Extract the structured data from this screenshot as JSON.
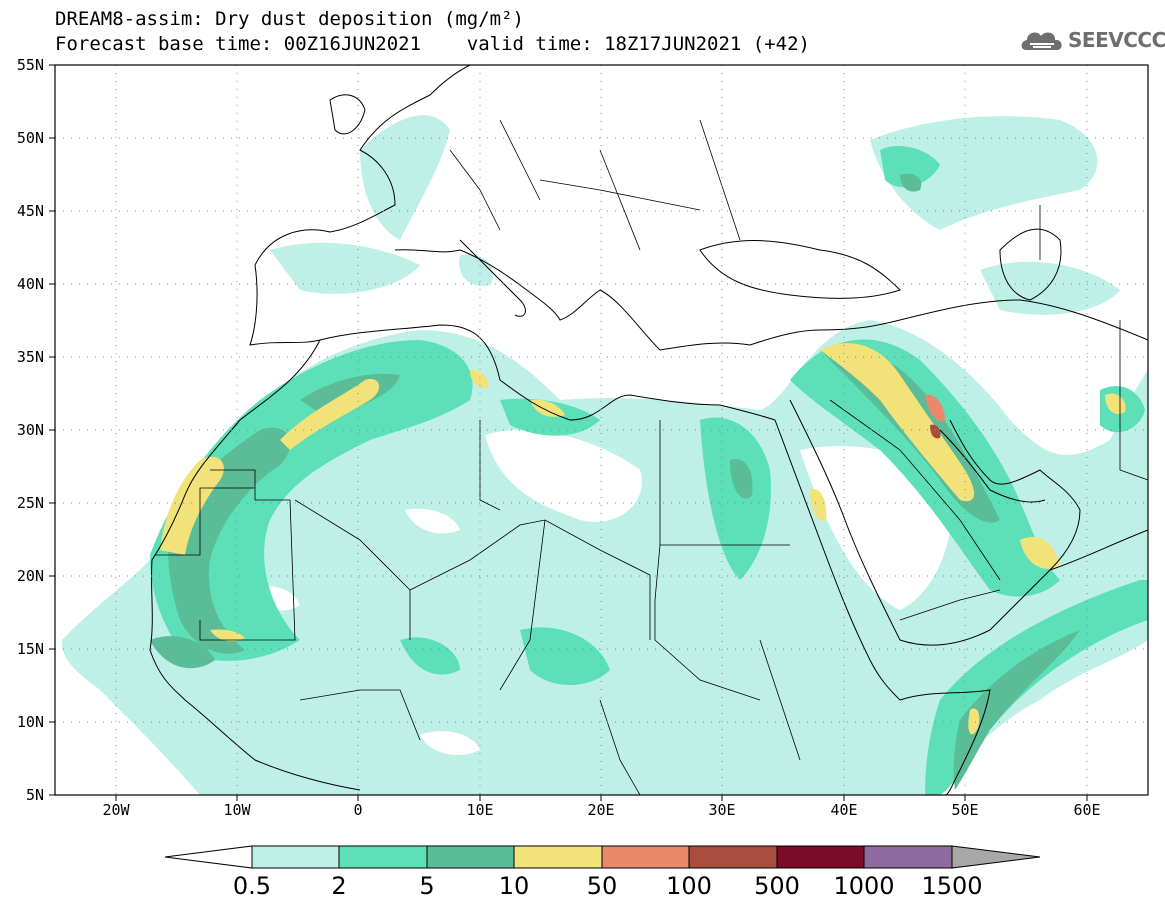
{
  "header": {
    "title_line1": "DREAM8-assim: Dry dust deposition (mg/m²)",
    "title_line2": "Forecast base time: 00Z16JUN2021    valid time: 18Z17JUN2021 (+42)",
    "logo_text": "SEEVCCC"
  },
  "map": {
    "lat_labels": [
      "55N",
      "50N",
      "45N",
      "40N",
      "35N",
      "30N",
      "25N",
      "20N",
      "15N",
      "10N",
      "5N"
    ],
    "lon_labels": [
      "20W",
      "10W",
      "0",
      "10E",
      "20E",
      "30E",
      "40E",
      "50E",
      "60E"
    ],
    "lat_range": [
      5,
      55
    ],
    "lon_range": [
      -25,
      65
    ],
    "grid": "dotted"
  },
  "colorbar": {
    "labels": [
      "0.5",
      "2",
      "5",
      "10",
      "50",
      "100",
      "500",
      "1000",
      "1500"
    ],
    "colors": [
      "#bff0e8",
      "#5de0b8",
      "#5bbd98",
      "#f2e27a",
      "#e9886a",
      "#a94e3f",
      "#7a0c2a",
      "#8e6a9e",
      "#a8a8a8"
    ]
  },
  "palette": {
    "lightest": "#bff0e8",
    "light": "#5de0b8",
    "medium": "#5bbd98",
    "yellow": "#f2e27a",
    "orange": "#e9886a",
    "dark": "#a94e3f"
  }
}
